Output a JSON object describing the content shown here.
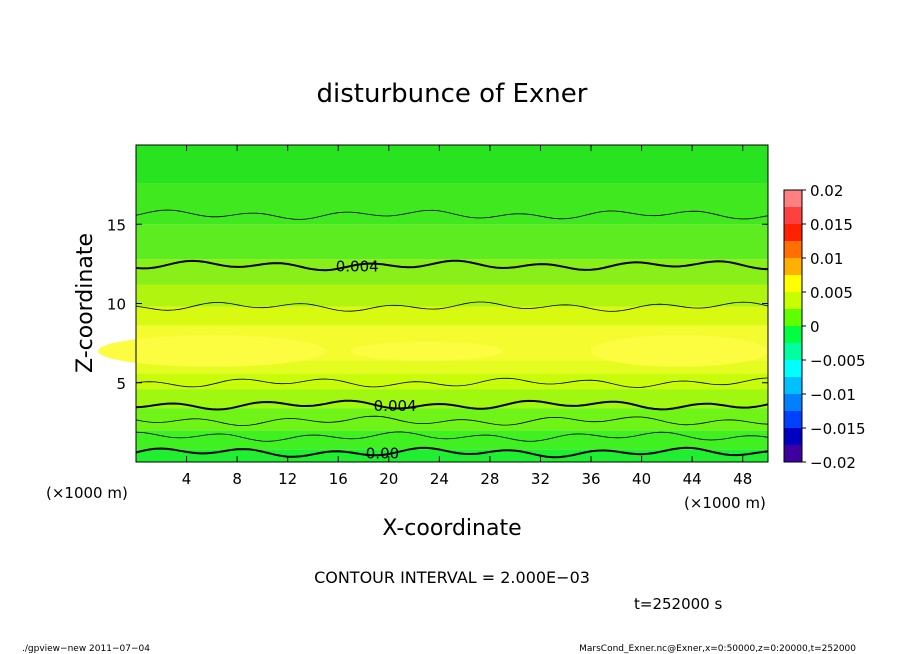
{
  "chart_data": {
    "type": "heatmap",
    "title": "disturbunce of Exner",
    "xlabel": "X-coordinate",
    "ylabel": "Z-coordinate",
    "x_unit": "(×1000 m)",
    "y_unit": "(×1000 m)",
    "xlim": [
      0,
      50
    ],
    "ylim": [
      0,
      20
    ],
    "x_ticks": [
      4,
      8,
      12,
      16,
      20,
      24,
      28,
      32,
      36,
      40,
      44,
      48
    ],
    "y_ticks": [
      5,
      10,
      15
    ],
    "colorbar": {
      "ticks": [
        "0.02",
        "0.015",
        "0.01",
        "0.005",
        "0",
        "−0.005",
        "−0.01",
        "−0.015",
        "−0.02"
      ],
      "range": [
        -0.02,
        0.02
      ],
      "levels": [
        {
          "from": 0.0175,
          "to": 0.02,
          "color": "#ff8080"
        },
        {
          "from": 0.015,
          "to": 0.0175,
          "color": "#ff4040"
        },
        {
          "from": 0.0125,
          "to": 0.015,
          "color": "#ff2000"
        },
        {
          "from": 0.01,
          "to": 0.0125,
          "color": "#ff7000"
        },
        {
          "from": 0.0075,
          "to": 0.01,
          "color": "#ffb000"
        },
        {
          "from": 0.005,
          "to": 0.0075,
          "color": "#ffff00"
        },
        {
          "from": 0.0025,
          "to": 0.005,
          "color": "#c8ff00"
        },
        {
          "from": 0.0,
          "to": 0.0025,
          "color": "#60ff00"
        },
        {
          "from": -0.0025,
          "to": 0.0,
          "color": "#00ff40"
        },
        {
          "from": -0.005,
          "to": -0.0025,
          "color": "#00ffa0"
        },
        {
          "from": -0.0075,
          "to": -0.005,
          "color": "#00ffff"
        },
        {
          "from": -0.01,
          "to": -0.0075,
          "color": "#00c0ff"
        },
        {
          "from": -0.0125,
          "to": -0.01,
          "color": "#0080ff"
        },
        {
          "from": -0.015,
          "to": -0.0125,
          "color": "#0040ff"
        },
        {
          "from": -0.0175,
          "to": -0.015,
          "color": "#0000c0"
        },
        {
          "from": -0.02,
          "to": -0.0175,
          "color": "#4000a0"
        }
      ]
    },
    "field_bands": [
      {
        "z_from": 0,
        "z_to": 0.8,
        "color": "#20ee30"
      },
      {
        "z_from": 0.8,
        "z_to": 2.0,
        "color": "#40f020"
      },
      {
        "z_from": 2.0,
        "z_to": 3.4,
        "color": "#70f418"
      },
      {
        "z_from": 3.4,
        "z_to": 4.6,
        "color": "#a0f810"
      },
      {
        "z_from": 4.6,
        "z_to": 5.6,
        "color": "#c8fc08"
      },
      {
        "z_from": 5.6,
        "z_to": 6.4,
        "color": "#e4fc20"
      },
      {
        "z_from": 6.4,
        "z_to": 8.6,
        "color": "#f4fc30"
      },
      {
        "z_from": 8.6,
        "z_to": 9.8,
        "color": "#d8fa10"
      },
      {
        "z_from": 9.8,
        "z_to": 11.2,
        "color": "#b0f410"
      },
      {
        "z_from": 11.2,
        "z_to": 12.8,
        "color": "#88f018"
      },
      {
        "z_from": 12.8,
        "z_to": 15.0,
        "color": "#5cec20"
      },
      {
        "z_from": 15.0,
        "z_to": 17.6,
        "color": "#40e820"
      },
      {
        "z_from": 17.6,
        "z_to": 20.0,
        "color": "#28e420"
      }
    ],
    "contours": [
      {
        "z": 0.6,
        "bold": true,
        "label": "0.00",
        "label_x": 19.5
      },
      {
        "z": 1.6,
        "bold": false
      },
      {
        "z": 2.6,
        "bold": false
      },
      {
        "z": 3.6,
        "bold": true,
        "label": "0.004",
        "label_x": 20.5
      },
      {
        "z": 5.0,
        "bold": false
      },
      {
        "z": 9.8,
        "bold": false
      },
      {
        "z": 12.4,
        "bold": true,
        "label": "0.004",
        "label_x": 17.5
      },
      {
        "z": 15.6,
        "bold": false
      }
    ]
  },
  "contour_interval": "CONTOUR INTERVAL = 2.000E−03",
  "time_label": "t=252000 s",
  "footer_left": "./gpview−new  2011−07−04",
  "footer_right": "MarsCond_Exner.nc@Exner,x=0:50000,z=0:20000,t=252000"
}
